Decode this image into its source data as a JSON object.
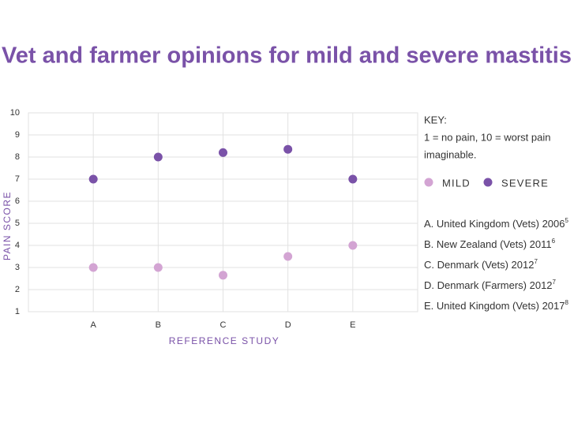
{
  "chart_data": {
    "type": "scatter",
    "title": "Vet and farmer opinions for mild and severe mastitis",
    "x_label": "REFERENCE STUDY",
    "y_label": "PAIN SCORE",
    "categories": [
      "A",
      "B",
      "C",
      "D",
      "E"
    ],
    "series": [
      {
        "name": "MILD",
        "color": "#d3a4d3",
        "values": [
          3,
          3,
          2.65,
          3.5,
          4
        ]
      },
      {
        "name": "SEVERE",
        "color": "#7a52a8",
        "values": [
          7,
          8,
          8.2,
          8.35,
          7
        ]
      }
    ],
    "ylim": [
      1,
      10
    ],
    "yticks": [
      1,
      2,
      3,
      4,
      5,
      6,
      7,
      8,
      9,
      10
    ],
    "grid": true,
    "key_title": "KEY:",
    "key_text": [
      "1 = no pain, 10 = worst pain",
      "imaginable."
    ],
    "studies": [
      {
        "text": "A. United Kingdom (Vets) 2006",
        "ref": "5"
      },
      {
        "text": "B. New Zealand (Vets) 2011",
        "ref": "6"
      },
      {
        "text": "C. Denmark (Vets) 2012",
        "ref": "7"
      },
      {
        "text": "D. Denmark (Farmers) 2012",
        "ref": "7"
      },
      {
        "text": "E. United Kingdom (Vets) 2017",
        "ref": "8"
      }
    ]
  }
}
